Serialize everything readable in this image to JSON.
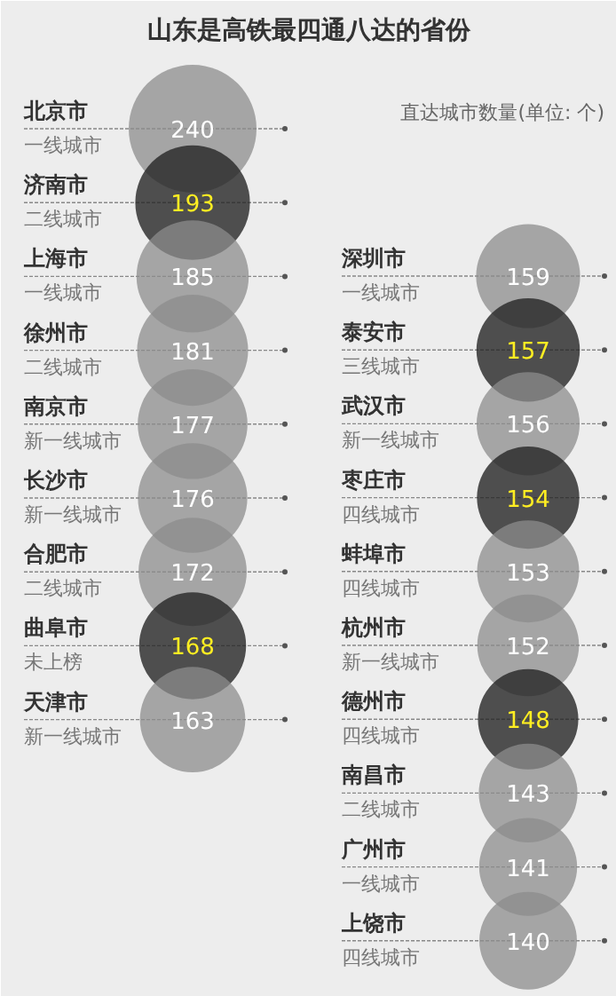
{
  "chart_data": {
    "type": "other",
    "title": "山东是高铁最四通八达的省份",
    "subtitle": "直达城市数量(单位: 个)",
    "data_labels": true,
    "categories": [
      "北京市",
      "济南市",
      "上海市",
      "徐州市",
      "南京市",
      "长沙市",
      "合肥市",
      "曲阜市",
      "天津市",
      "深圳市",
      "泰安市",
      "武汉市",
      "枣庄市",
      "蚌埠市",
      "杭州市",
      "德州市",
      "南昌市",
      "广州市",
      "上饶市"
    ],
    "annotations": [
      "一线城市",
      "二线城市",
      "一线城市",
      "二线城市",
      "新一线城市",
      "新一线城市",
      "二线城市",
      "未上榜",
      "新一线城市",
      "一线城市",
      "三线城市",
      "新一线城市",
      "四线城市",
      "四线城市",
      "新一线城市",
      "四线城市",
      "二线城市",
      "一线城市",
      "四线城市"
    ],
    "values": [
      240,
      193,
      185,
      181,
      177,
      176,
      172,
      168,
      163,
      159,
      157,
      156,
      154,
      153,
      152,
      148,
      143,
      141,
      140
    ],
    "colors": [
      "#8c8c8c",
      "#262626",
      "#8c8c8c",
      "#8c8c8c",
      "#8c8c8c",
      "#8c8c8c",
      "#8c8c8c",
      "#262626",
      "#8c8c8c",
      "#8c8c8c",
      "#262626",
      "#8c8c8c",
      "#262626",
      "#8c8c8c",
      "#8c8c8c",
      "#262626",
      "#8c8c8c",
      "#8c8c8c",
      "#8c8c8c"
    ]
  }
}
